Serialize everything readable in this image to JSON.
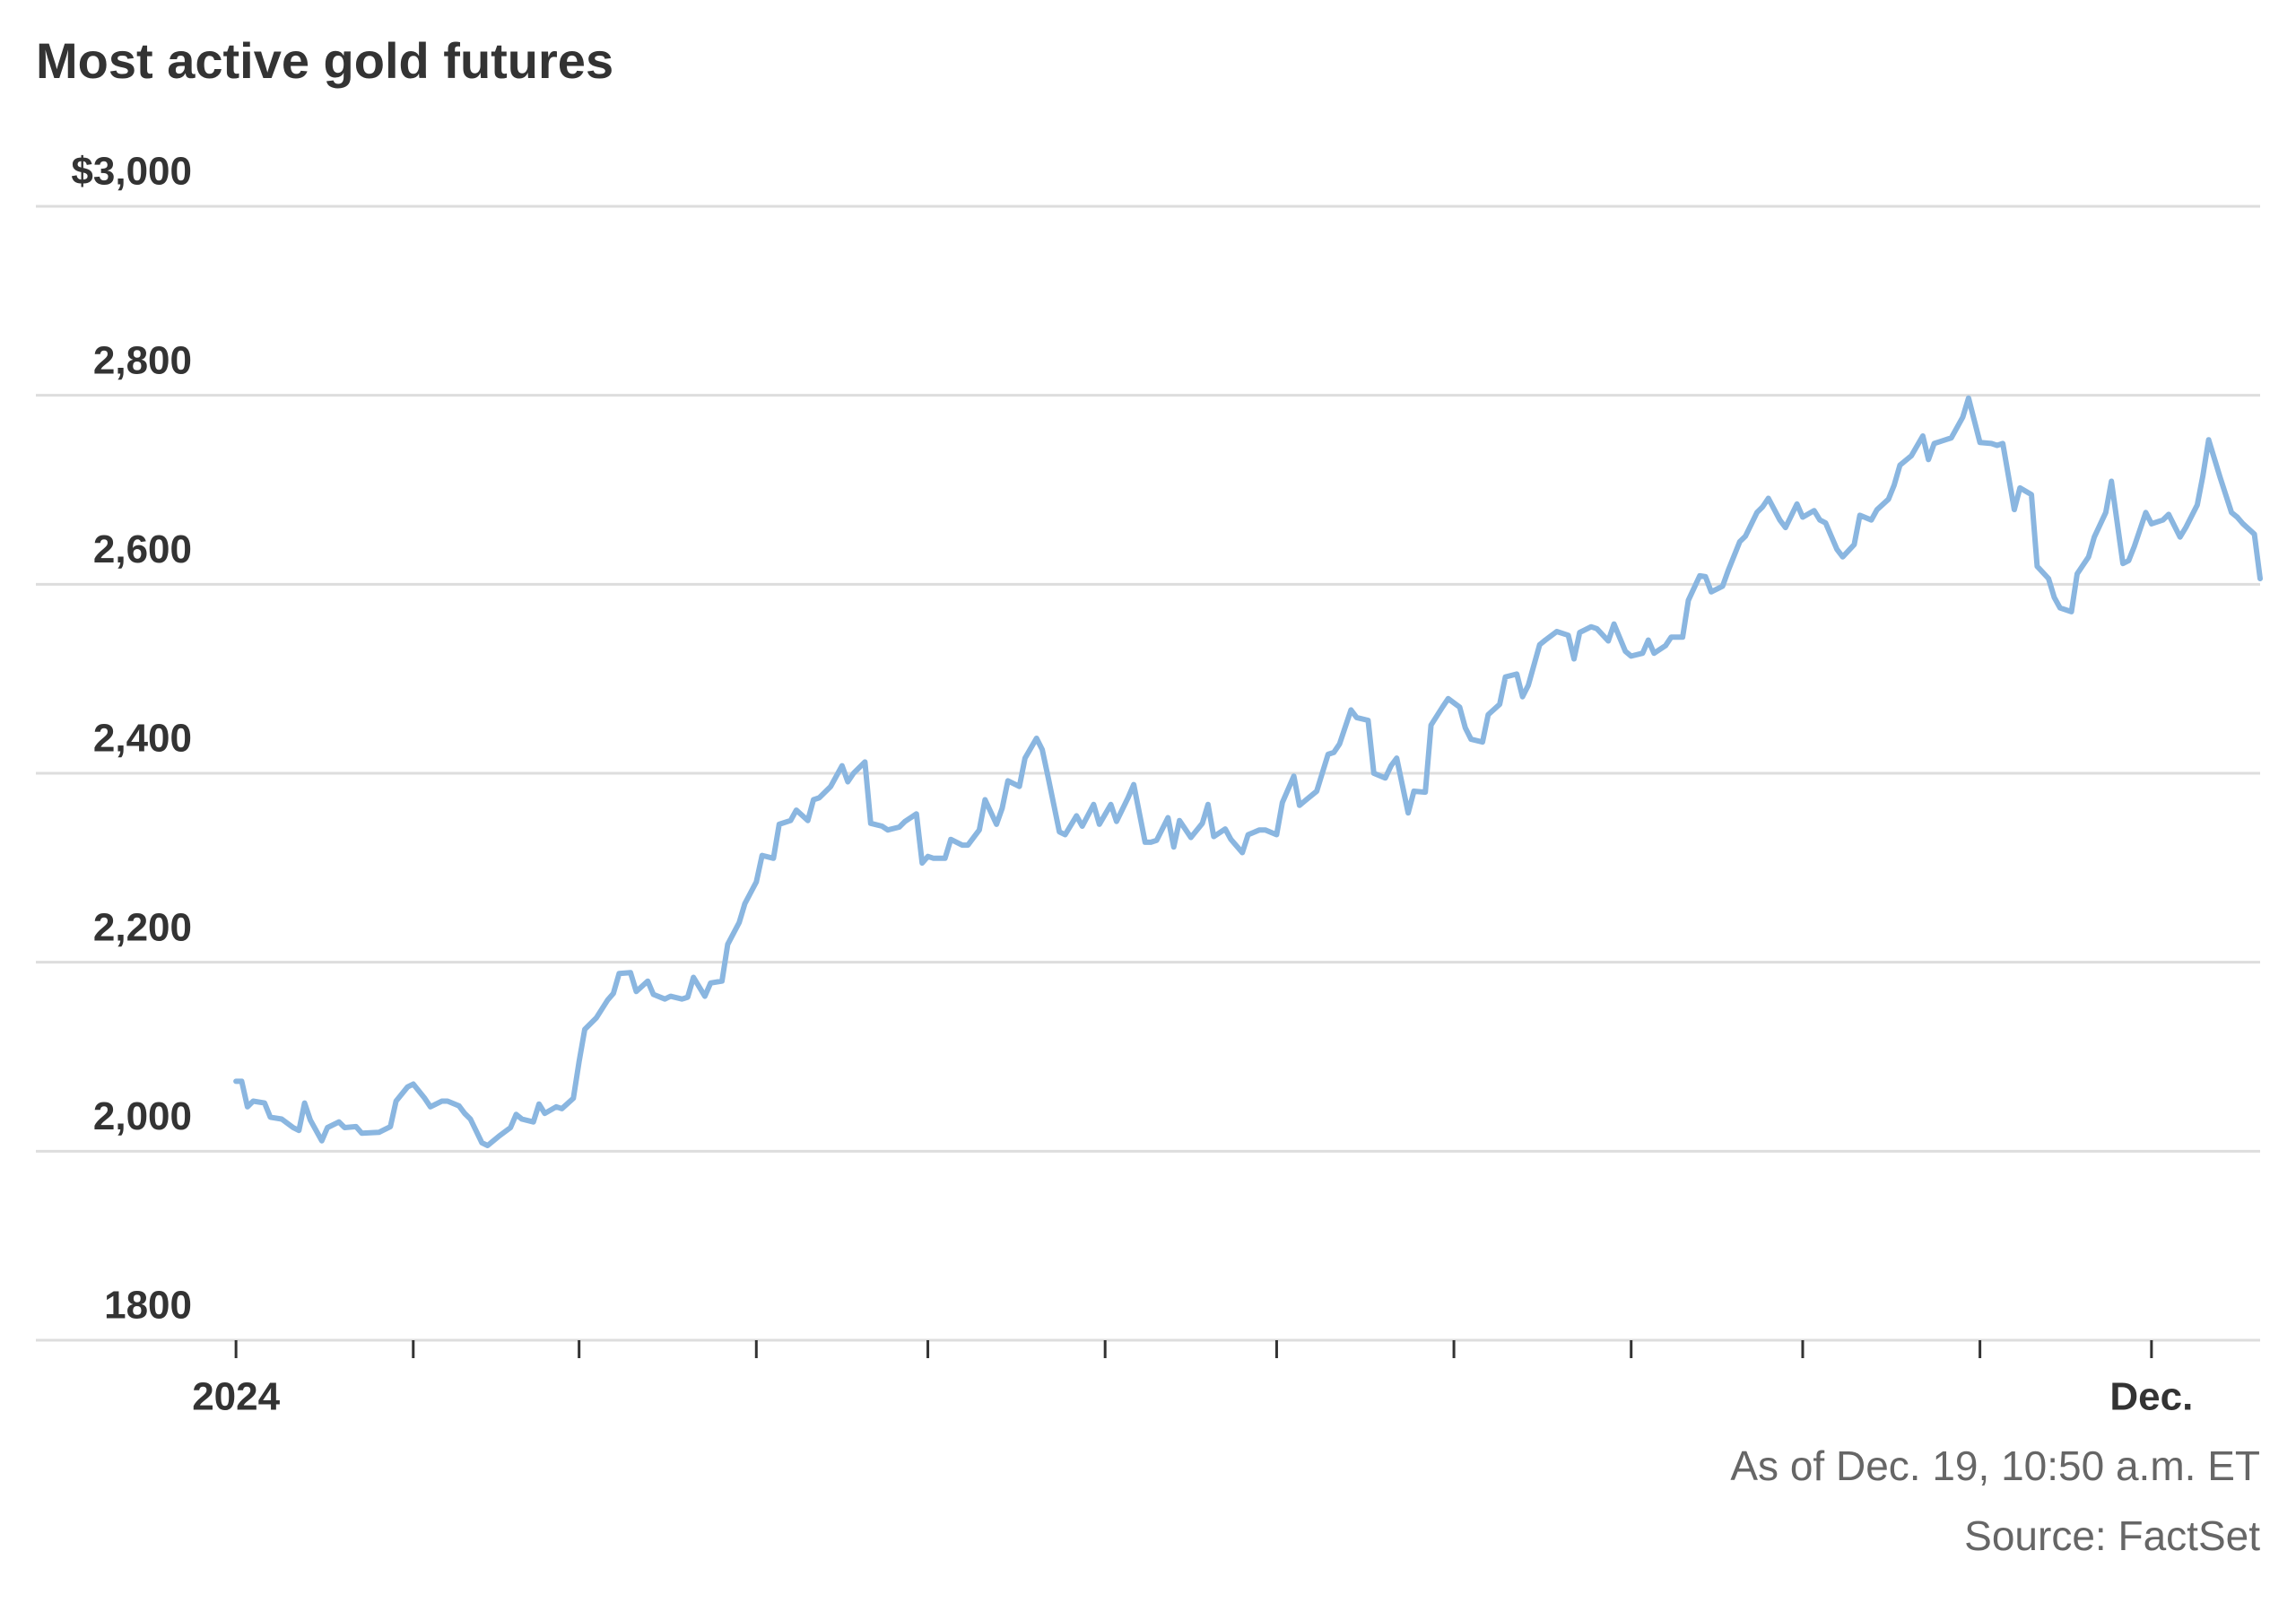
{
  "chart_data": {
    "type": "line",
    "title": "Most active gold futures",
    "notes": [
      "As of Dec. 19, 10:50 a.m. ET",
      "Source: FactSet"
    ],
    "x": [
      0,
      1,
      2,
      3,
      5,
      6,
      8,
      10,
      11,
      12,
      13,
      15,
      16,
      18,
      19,
      21,
      22,
      25,
      27,
      28,
      30,
      31,
      33,
      34,
      36,
      37,
      39,
      40,
      41,
      43,
      44,
      46,
      48,
      49,
      50,
      52,
      53,
      54,
      56,
      57,
      59,
      60,
      61,
      63,
      65,
      66,
      67,
      69,
      70,
      72,
      73,
      75,
      76,
      78,
      79,
      80,
      82,
      83,
      85,
      86,
      88,
      89,
      91,
      92,
      94,
      95,
      97,
      98,
      100,
      101,
      102,
      104,
      106,
      107,
      108,
      110,
      111,
      113,
      114,
      116,
      117,
      119,
      120,
      121,
      122,
      124,
      125,
      127,
      128,
      130,
      131,
      133,
      134,
      135,
      137,
      138,
      140,
      141,
      142,
      144,
      145,
      147,
      148,
      150,
      151,
      153,
      154,
      156,
      157,
      159,
      160,
      161,
      163,
      164,
      165,
      167,
      169,
      170,
      171,
      173,
      174,
      176,
      177,
      179,
      180,
      182,
      183,
      185,
      186,
      187,
      189,
      191,
      192,
      193,
      195,
      196,
      198,
      199,
      201,
      202,
      203,
      205,
      206,
      208,
      209,
      211,
      212,
      214,
      215,
      216,
      218,
      219,
      221,
      222,
      224,
      225,
      226,
      228,
      229,
      231,
      233,
      234,
      235,
      237,
      238,
      240,
      241,
      243,
      244,
      246,
      247,
      248,
      250,
      251,
      253,
      254,
      256,
      257,
      258,
      260,
      261,
      263,
      264,
      266,
      267,
      268,
      270,
      271,
      273,
      274,
      276,
      277,
      278,
      280,
      281,
      283,
      284,
      286,
      287,
      289,
      290,
      291,
      293,
      295,
      296,
      297,
      299,
      300,
      302,
      303,
      305,
      307,
      308,
      309,
      311,
      312,
      314,
      315,
      317,
      318,
      319,
      321,
      322,
      324,
      325,
      327,
      328,
      330,
      331,
      332,
      334,
      335,
      337,
      338,
      340,
      341,
      343,
      344,
      345,
      347,
      349,
      350,
      351,
      353,
      354
    ],
    "series": [
      {
        "name": "Most active gold futures",
        "color": "#8ab6e0",
        "values": [
          2074,
          2074,
          2047,
          2053,
          2051,
          2036,
          2034,
          2025,
          2022,
          2051,
          2033,
          2011,
          2025,
          2031,
          2025,
          2026,
          2019,
          2020,
          2026,
          2053,
          2068,
          2071,
          2056,
          2047,
          2053,
          2053,
          2048,
          2040,
          2034,
          2009,
          2006,
          2016,
          2025,
          2039,
          2034,
          2031,
          2050,
          2040,
          2047,
          2045,
          2056,
          2095,
          2129,
          2141,
          2160,
          2167,
          2188,
          2189,
          2169,
          2180,
          2166,
          2161,
          2164,
          2161,
          2163,
          2184,
          2164,
          2178,
          2180,
          2219,
          2242,
          2262,
          2285,
          2313,
          2310,
          2346,
          2350,
          2361,
          2350,
          2372,
          2374,
          2386,
          2408,
          2391,
          2400,
          2412,
          2347,
          2344,
          2340,
          2343,
          2349,
          2357,
          2305,
          2312,
          2310,
          2310,
          2330,
          2324,
          2324,
          2340,
          2372,
          2346,
          2363,
          2392,
          2386,
          2416,
          2437,
          2425,
          2397,
          2338,
          2335,
          2355,
          2344,
          2367,
          2346,
          2367,
          2349,
          2374,
          2388,
          2327,
          2327,
          2329,
          2353,
          2322,
          2350,
          2332,
          2347,
          2367,
          2333,
          2341,
          2330,
          2316,
          2335,
          2340,
          2340,
          2335,
          2369,
          2397,
          2366,
          2371,
          2381,
          2420,
          2422,
          2431,
          2467,
          2459,
          2456,
          2400,
          2395,
          2408,
          2416,
          2358,
          2381,
          2380,
          2451,
          2470,
          2479,
          2470,
          2448,
          2436,
          2433,
          2462,
          2473,
          2502,
          2505,
          2481,
          2493,
          2536,
          2541,
          2550,
          2546,
          2521,
          2549,
          2555,
          2553,
          2540,
          2558,
          2529,
          2524,
          2527,
          2541,
          2527,
          2535,
          2544,
          2544,
          2583,
          2609,
          2608,
          2592,
          2598,
          2615,
          2645,
          2651,
          2676,
          2682,
          2691,
          2668,
          2660,
          2685,
          2671,
          2678,
          2668,
          2665,
          2637,
          2629,
          2642,
          2673,
          2668,
          2679,
          2690,
          2705,
          2726,
          2736,
          2757,
          2732,
          2749,
          2753,
          2755,
          2777,
          2797,
          2750,
          2749,
          2747,
          2749,
          2679,
          2702,
          2695,
          2619,
          2606,
          2586,
          2575,
          2571,
          2611,
          2629,
          2650,
          2676,
          2709,
          2622,
          2625,
          2640,
          2676,
          2664,
          2668,
          2674,
          2650,
          2660,
          2684,
          2715,
          2753,
          2713,
          2676,
          2671,
          2664,
          2653,
          2606
        ]
      }
    ],
    "xlim": [
      -35,
      354
    ],
    "xticks": [
      {
        "value": 0,
        "label": "2024"
      },
      {
        "value": 335,
        "label": "Dec."
      }
    ],
    "xminorticks": [
      31,
      60,
      91,
      121,
      152,
      182,
      213,
      244,
      274,
      305
    ],
    "ylim": [
      1800,
      3000
    ],
    "yticks": [
      1800,
      {
        "value": 2000,
        "label": "2,000"
      },
      {
        "value": 2200,
        "label": "2,200"
      },
      {
        "value": 2400,
        "label": "2,400"
      },
      {
        "value": 2600,
        "label": "2,600"
      },
      {
        "value": 2800,
        "label": "2,800"
      },
      {
        "value": 3000,
        "label": "$3,000"
      }
    ],
    "grid": true
  }
}
